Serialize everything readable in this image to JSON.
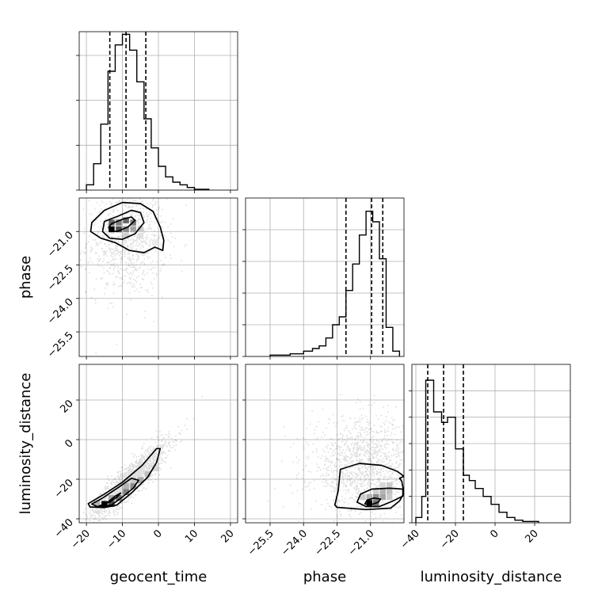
{
  "chart_data": {
    "type": "corner",
    "parameters": [
      {
        "name": "geocent_time",
        "label": "geocent_time",
        "range": [
          -22,
          22
        ],
        "ticks": [
          -20,
          -10,
          0,
          10,
          20
        ],
        "tick_labels": [
          "−20",
          "−10",
          "0",
          "10",
          "20"
        ],
        "quantiles": [
          -13.5,
          -9,
          -3.5
        ],
        "hist_max": 60,
        "hist_yticks": [
          0,
          17,
          34,
          51
        ],
        "hist": [
          {
            "x0": -20,
            "x1": -18,
            "v": 2
          },
          {
            "x0": -18,
            "x1": -16,
            "v": 10
          },
          {
            "x0": -16,
            "x1": -14,
            "v": 25
          },
          {
            "x0": -14,
            "x1": -12,
            "v": 45
          },
          {
            "x0": -12,
            "x1": -10,
            "v": 55
          },
          {
            "x0": -10,
            "x1": -8,
            "v": 59
          },
          {
            "x0": -8,
            "x1": -6,
            "v": 53
          },
          {
            "x0": -6,
            "x1": -4,
            "v": 41
          },
          {
            "x0": -4,
            "x1": -2,
            "v": 27
          },
          {
            "x0": -2,
            "x1": 0,
            "v": 16
          },
          {
            "x0": 0,
            "x1": 2,
            "v": 9
          },
          {
            "x0": 2,
            "x1": 4,
            "v": 5
          },
          {
            "x0": 4,
            "x1": 6,
            "v": 3
          },
          {
            "x0": 6,
            "x1": 8,
            "v": 2
          },
          {
            "x0": 8,
            "x1": 10,
            "v": 1
          },
          {
            "x0": 10,
            "x1": 14,
            "v": 0.3
          }
        ]
      },
      {
        "name": "phase",
        "label": "phase",
        "range": [
          -26.6,
          -19.5
        ],
        "ticks": [
          -25.5,
          -24.0,
          -22.5,
          -21.0
        ],
        "tick_labels": [
          "−25.5",
          "−24.0",
          "−22.5",
          "−21.0"
        ],
        "quantiles": [
          -22.1,
          -20.95,
          -20.45
        ],
        "hist_max": 60,
        "hist_yticks": [
          0,
          12,
          24,
          36,
          48
        ],
        "hist": [
          {
            "x0": -25.5,
            "x1": -24.6,
            "v": 0.5
          },
          {
            "x0": -24.6,
            "x1": -24.0,
            "v": 1
          },
          {
            "x0": -24.0,
            "x1": -23.6,
            "v": 2
          },
          {
            "x0": -23.6,
            "x1": -23.3,
            "v": 3
          },
          {
            "x0": -23.3,
            "x1": -23.0,
            "v": 4
          },
          {
            "x0": -23.0,
            "x1": -22.7,
            "v": 7
          },
          {
            "x0": -22.7,
            "x1": -22.4,
            "v": 12
          },
          {
            "x0": -22.4,
            "x1": -22.1,
            "v": 15
          },
          {
            "x0": -22.1,
            "x1": -21.8,
            "v": 25
          },
          {
            "x0": -21.8,
            "x1": -21.5,
            "v": 35
          },
          {
            "x0": -21.5,
            "x1": -21.2,
            "v": 46
          },
          {
            "x0": -21.2,
            "x1": -20.9,
            "v": 55
          },
          {
            "x0": -20.9,
            "x1": -20.6,
            "v": 51
          },
          {
            "x0": -20.6,
            "x1": -20.3,
            "v": 37
          },
          {
            "x0": -20.3,
            "x1": -20.0,
            "v": 11
          },
          {
            "x0": -20.0,
            "x1": -19.7,
            "v": 2
          }
        ]
      },
      {
        "name": "luminosity_distance",
        "label": "luminosity_distance",
        "range": [
          -42,
          38
        ],
        "ticks": [
          -40,
          -20,
          0,
          20
        ],
        "tick_labels": [
          "−40",
          "−20",
          "0",
          "20"
        ],
        "quantiles": [
          -34,
          -26,
          -16
        ],
        "hist_max": 60,
        "hist_yticks": [
          0,
          10,
          20,
          30,
          40,
          50
        ],
        "hist": [
          {
            "x0": -40,
            "x1": -37,
            "v": 2
          },
          {
            "x0": -37,
            "x1": -35,
            "v": 10
          },
          {
            "x0": -35,
            "x1": -31,
            "v": 54
          },
          {
            "x0": -31,
            "x1": -27,
            "v": 42
          },
          {
            "x0": -27,
            "x1": -24,
            "v": 38
          },
          {
            "x0": -24,
            "x1": -20,
            "v": 40
          },
          {
            "x0": -20,
            "x1": -16,
            "v": 28
          },
          {
            "x0": -16,
            "x1": -13,
            "v": 18
          },
          {
            "x0": -13,
            "x1": -10,
            "v": 16
          },
          {
            "x0": -10,
            "x1": -6,
            "v": 13
          },
          {
            "x0": -6,
            "x1": -2,
            "v": 10
          },
          {
            "x0": -2,
            "x1": 2,
            "v": 7
          },
          {
            "x0": 2,
            "x1": 6,
            "v": 4
          },
          {
            "x0": 6,
            "x1": 10,
            "v": 2
          },
          {
            "x0": 10,
            "x1": 14,
            "v": 1
          },
          {
            "x0": 14,
            "x1": 22,
            "v": 0.5
          }
        ]
      }
    ],
    "pairs": [
      {
        "x_param": 0,
        "y_param": 1,
        "scatter": {
          "center": [
            -9,
            -21.4
          ],
          "spread": [
            5.5,
            1.2
          ],
          "correlation": 0,
          "count": 900
        },
        "density": [
          {
            "x": -13,
            "y": -20.9,
            "v": 1.0
          },
          {
            "x": -11,
            "y": -20.9,
            "v": 0.7
          },
          {
            "x": -9,
            "y": -20.5,
            "v": 0.6
          },
          {
            "x": -7,
            "y": -20.6,
            "v": 0.5
          },
          {
            "x": -13,
            "y": -20.6,
            "v": 0.6
          },
          {
            "x": -11,
            "y": -20.6,
            "v": 0.5
          },
          {
            "x": -9,
            "y": -20.9,
            "v": 0.45
          },
          {
            "x": -7,
            "y": -20.9,
            "v": 0.35
          },
          {
            "x": -5,
            "y": -20.9,
            "v": 0.2
          },
          {
            "x": -9,
            "y": -21.2,
            "v": 0.2
          },
          {
            "x": -5,
            "y": -21.2,
            "v": 0.12
          },
          {
            "x": -1,
            "y": -21.5,
            "v": 0.08
          }
        ],
        "contours": [
          [
            [
              -13,
              -20.65
            ],
            [
              -10,
              -20.45
            ],
            [
              -7.5,
              -20.35
            ],
            [
              -6.5,
              -20.5
            ],
            [
              -8.5,
              -20.8
            ],
            [
              -11.5,
              -21.0
            ],
            [
              -13.6,
              -20.95
            ],
            [
              -13.8,
              -20.8
            ]
          ],
          [
            [
              -15,
              -20.55
            ],
            [
              -11,
              -20.3
            ],
            [
              -7.5,
              -20.05
            ],
            [
              -5,
              -20.15
            ],
            [
              -4,
              -20.6
            ],
            [
              -6.5,
              -21.1
            ],
            [
              -10,
              -21.35
            ],
            [
              -13.5,
              -21.3
            ],
            [
              -15.5,
              -21.0
            ]
          ],
          [
            [
              -18.5,
              -20.6
            ],
            [
              -15,
              -20.05
            ],
            [
              -10,
              -19.7
            ],
            [
              -5,
              -19.75
            ],
            [
              -1.5,
              -20.1
            ],
            [
              0.5,
              -20.8
            ],
            [
              1.5,
              -21.4
            ],
            [
              1.2,
              -21.85
            ],
            [
              -1,
              -21.7
            ],
            [
              -4,
              -21.95
            ],
            [
              -8,
              -21.85
            ],
            [
              -12,
              -21.5
            ],
            [
              -16,
              -21.3
            ],
            [
              -18.8,
              -21.0
            ]
          ]
        ]
      },
      {
        "x_param": 0,
        "y_param": 2,
        "scatter": {
          "center": [
            -8,
            -20
          ],
          "spread": [
            5.5,
            10
          ],
          "correlation": 0.9,
          "count": 1500
        },
        "density": [
          {
            "x": -15,
            "y": -32.5,
            "v": 1.0
          },
          {
            "x": -13,
            "y": -32.5,
            "v": 0.7
          },
          {
            "x": -11,
            "y": -29.5,
            "v": 0.55
          },
          {
            "x": -9,
            "y": -26.5,
            "v": 0.5
          },
          {
            "x": -7,
            "y": -23.5,
            "v": 0.45
          },
          {
            "x": -5,
            "y": -20.5,
            "v": 0.35
          },
          {
            "x": -3,
            "y": -17.5,
            "v": 0.25
          },
          {
            "x": -1,
            "y": -14.5,
            "v": 0.15
          },
          {
            "x": -13,
            "y": -29.5,
            "v": 0.35
          },
          {
            "x": -9,
            "y": -23.5,
            "v": 0.3
          },
          {
            "x": -7,
            "y": -20.5,
            "v": 0.2
          },
          {
            "x": -17,
            "y": -32.5,
            "v": 0.3
          }
        ],
        "contours": [
          [
            [
              -16.5,
              -33.5
            ],
            [
              -13.5,
              -31.5
            ],
            [
              -11.5,
              -29
            ],
            [
              -10.5,
              -27
            ],
            [
              -12,
              -28.5
            ],
            [
              -14,
              -31.5
            ],
            [
              -16.3,
              -33.8
            ]
          ],
          [
            [
              -18.5,
              -32.5
            ],
            [
              -15.5,
              -29.5
            ],
            [
              -11,
              -24
            ],
            [
              -7.5,
              -19.5
            ],
            [
              -5.5,
              -20.5
            ],
            [
              -7,
              -24.5
            ],
            [
              -10,
              -29
            ],
            [
              -13,
              -33
            ],
            [
              -17,
              -33.8
            ]
          ],
          [
            [
              -19.5,
              -32.3
            ],
            [
              -15,
              -27.5
            ],
            [
              -10,
              -21.5
            ],
            [
              -4.5,
              -13
            ],
            [
              -0.5,
              -4.5
            ],
            [
              0.5,
              -4.5
            ],
            [
              -0.5,
              -11.5
            ],
            [
              -3,
              -19
            ],
            [
              -7.5,
              -27
            ],
            [
              -11.5,
              -33
            ],
            [
              -15,
              -34.3
            ],
            [
              -19,
              -34
            ]
          ]
        ]
      },
      {
        "x_param": 1,
        "y_param": 2,
        "scatter": {
          "center": [
            -21.3,
            -13
          ],
          "spread": [
            1.2,
            12
          ],
          "correlation": 0,
          "count": 1300
        },
        "density": [
          {
            "x": -21.05,
            "y": -32,
            "v": 1.0
          },
          {
            "x": -20.75,
            "y": -32,
            "v": 0.55
          },
          {
            "x": -20.75,
            "y": -29,
            "v": 0.45
          },
          {
            "x": -20.45,
            "y": -29,
            "v": 0.35
          },
          {
            "x": -20.45,
            "y": -26,
            "v": 0.3
          },
          {
            "x": -20.15,
            "y": -26,
            "v": 0.25
          },
          {
            "x": -20.15,
            "y": -23,
            "v": 0.2
          },
          {
            "x": -20.45,
            "y": -23,
            "v": 0.15
          },
          {
            "x": -21.05,
            "y": -29,
            "v": 0.3
          },
          {
            "x": -21.35,
            "y": -29,
            "v": 0.2
          },
          {
            "x": -20.75,
            "y": -26,
            "v": 0.18
          },
          {
            "x": -20.15,
            "y": -29,
            "v": 0.2
          }
        ],
        "contours": [
          [
            [
              -21.25,
              -32.4
            ],
            [
              -21.15,
              -30.5
            ],
            [
              -20.85,
              -29.5
            ],
            [
              -20.55,
              -30
            ],
            [
              -20.65,
              -31.6
            ],
            [
              -21.0,
              -33
            ]
          ],
          [
            [
              -21.6,
              -31.6
            ],
            [
              -21.45,
              -27.5
            ],
            [
              -20.95,
              -25
            ],
            [
              -20.15,
              -24.5
            ],
            [
              -19.55,
              -25
            ],
            [
              -19.55,
              -28.5
            ],
            [
              -20.0,
              -31
            ],
            [
              -20.6,
              -33.8
            ],
            [
              -21.2,
              -33.8
            ]
          ],
          [
            [
              -22.6,
              -33
            ],
            [
              -22.45,
              -26
            ],
            [
              -22.35,
              -15
            ],
            [
              -21.5,
              -12
            ],
            [
              -20.5,
              -13
            ],
            [
              -19.8,
              -16
            ],
            [
              -19.5,
              -18.5
            ],
            [
              -19.7,
              -19.5
            ],
            [
              -19.6,
              -21
            ],
            [
              -19.5,
              -27
            ],
            [
              -19.7,
              -31
            ],
            [
              -20.1,
              -34.6
            ],
            [
              -21.2,
              -35.3
            ],
            [
              -22.5,
              -34.2
            ]
          ]
        ]
      }
    ]
  }
}
